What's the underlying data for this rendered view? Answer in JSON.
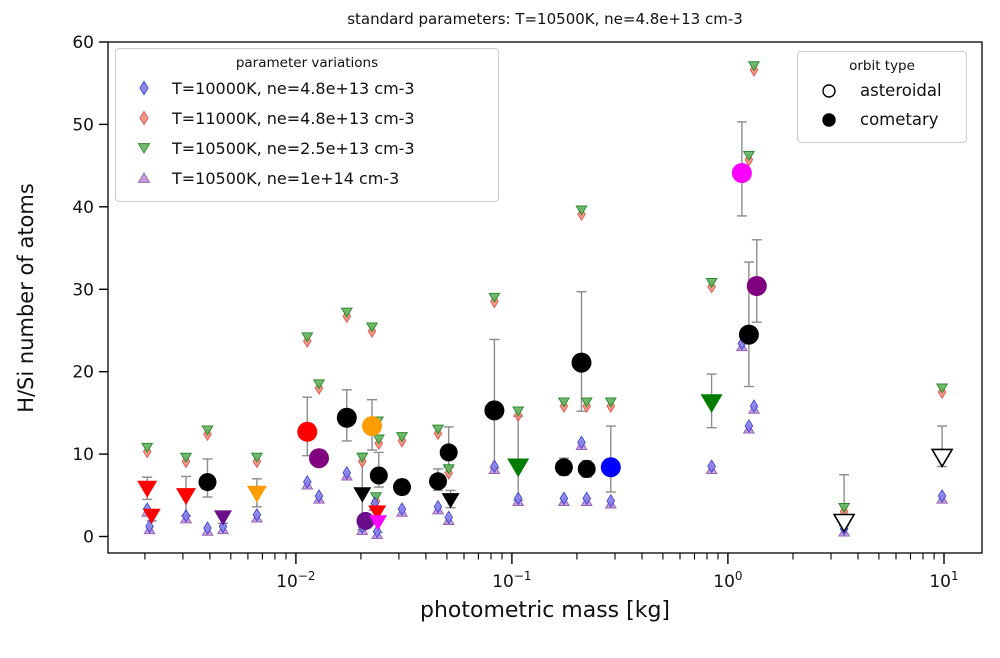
{
  "chart_data": {
    "type": "scatter",
    "title": "standard parameters: T=10500K, ne=4.8e+13 cm-3",
    "xlabel": "photometric mass [kg]",
    "ylabel": "H/Si number of atoms",
    "xscale": "log",
    "xlim": [
      0.00135,
      15
    ],
    "ylim": [
      -2,
      60
    ],
    "grid": false,
    "yticks": [
      0,
      10,
      20,
      30,
      40,
      50,
      60
    ],
    "xticks": [
      {
        "value": 0.01,
        "base": "10",
        "exp": "−2"
      },
      {
        "value": 0.1,
        "base": "10",
        "exp": "−1"
      },
      {
        "value": 1,
        "base": "10",
        "exp": "0"
      },
      {
        "value": 10,
        "base": "10",
        "exp": "1"
      }
    ],
    "legend_parameter_variations": {
      "title": "parameter variations",
      "entries": [
        {
          "label": "T=10000K, ne=4.8e+13 cm-3",
          "marker": "diamond",
          "fill": "#8080ee",
          "edge": "#4646d2"
        },
        {
          "label": "T=11000K, ne=4.8e+13 cm-3",
          "marker": "diamond",
          "fill": "#f4897b",
          "edge": "#e05a50"
        },
        {
          "label": "T=10500K, ne=2.5e+13 cm-3",
          "marker": "tri-down",
          "fill": "#63b663",
          "edge": "#2e8b2e"
        },
        {
          "label": "T=10500K, ne=1e+14 cm-3",
          "marker": "tri-up",
          "fill": "#bf94d4",
          "edge": "#9a63b8"
        }
      ]
    },
    "legend_orbit_type": {
      "title": "orbit type",
      "entries": [
        {
          "label": "asteroidal",
          "marker": "circle",
          "filled": false
        },
        {
          "label": "cometary",
          "marker": "circle",
          "filled": true
        }
      ]
    },
    "error_bar_color": "#8c8c8c",
    "main_points": [
      {
        "m": 0.00205,
        "v": 5.8,
        "lo": 1.3,
        "hi": 1.4,
        "color": "#ff0000",
        "shape": "tri-down",
        "size": 10,
        "filled": true,
        "orbit": "cometary"
      },
      {
        "m": 0.00215,
        "v": 2.5,
        "lo": 0.6,
        "hi": 0.6,
        "color": "#ff0000",
        "shape": "tri-down",
        "size": 9,
        "filled": true,
        "orbit": "cometary"
      },
      {
        "m": 0.0031,
        "v": 4.9,
        "lo": 2.4,
        "hi": 2.4,
        "color": "#ff0000",
        "shape": "tri-down",
        "size": 10,
        "filled": true,
        "orbit": "cometary"
      },
      {
        "m": 0.0039,
        "v": 6.6,
        "lo": 1.8,
        "hi": 2.8,
        "color": "#000000",
        "shape": "circle",
        "size": 9,
        "filled": true,
        "orbit": "cometary"
      },
      {
        "m": 0.0046,
        "v": 2.3,
        "lo": 0.7,
        "hi": 0.7,
        "color": "#6a0d8a",
        "shape": "tri-down",
        "size": 9,
        "filled": true,
        "orbit": "cometary"
      },
      {
        "m": 0.0066,
        "v": 5.2,
        "lo": 1.6,
        "hi": 1.8,
        "color": "#ff9d00",
        "shape": "tri-down",
        "size": 10,
        "filled": true,
        "orbit": "cometary"
      },
      {
        "m": 0.0113,
        "v": 12.7,
        "lo": 2.9,
        "hi": 4.2,
        "color": "#ff0000",
        "shape": "circle",
        "size": 10,
        "filled": true,
        "orbit": "cometary"
      },
      {
        "m": 0.0128,
        "v": 9.5,
        "lo": 0.9,
        "hi": 0.9,
        "color": "#800080",
        "shape": "circle",
        "size": 10,
        "filled": true,
        "orbit": "cometary"
      },
      {
        "m": 0.0172,
        "v": 14.4,
        "lo": 2.8,
        "hi": 3.4,
        "color": "#000000",
        "shape": "circle",
        "size": 10,
        "filled": true,
        "orbit": "cometary"
      },
      {
        "m": 0.0203,
        "v": 5.1,
        "lo": 4.3,
        "hi": 5.0,
        "color": "#000000",
        "shape": "tri-down",
        "size": 9,
        "filled": true,
        "orbit": "cometary"
      },
      {
        "m": 0.021,
        "v": 1.9,
        "lo": 0.5,
        "hi": 0.5,
        "color": "#6a0d8a",
        "shape": "circle",
        "size": 9,
        "filled": true,
        "orbit": "cometary"
      },
      {
        "m": 0.0225,
        "v": 13.4,
        "lo": 2.9,
        "hi": 3.2,
        "color": "#ff9d00",
        "shape": "circle",
        "size": 10,
        "filled": true,
        "orbit": "cometary"
      },
      {
        "m": 0.0242,
        "v": 7.4,
        "lo": 1.4,
        "hi": 2.8,
        "color": "#000000",
        "shape": "circle",
        "size": 9,
        "filled": true,
        "orbit": "cometary"
      },
      {
        "m": 0.0238,
        "v": 2.9,
        "lo": 0.7,
        "hi": 0.7,
        "color": "#ff0000",
        "shape": "tri-down",
        "size": 9,
        "filled": true,
        "orbit": "cometary"
      },
      {
        "m": 0.024,
        "v": 1.7,
        "lo": 1.2,
        "hi": 0.6,
        "color": "#ff00ff",
        "shape": "tri-down",
        "size": 9,
        "filled": true,
        "orbit": "cometary"
      },
      {
        "m": 0.031,
        "v": 6.0,
        "lo": 0.9,
        "hi": 0.9,
        "color": "#000000",
        "shape": "circle",
        "size": 9,
        "filled": true,
        "orbit": "cometary"
      },
      {
        "m": 0.0455,
        "v": 6.7,
        "lo": 1.1,
        "hi": 1.5,
        "color": "#000000",
        "shape": "circle",
        "size": 9,
        "filled": true,
        "orbit": "cometary"
      },
      {
        "m": 0.051,
        "v": 10.2,
        "lo": 1.8,
        "hi": 3.1,
        "color": "#000000",
        "shape": "circle",
        "size": 9,
        "filled": true,
        "orbit": "cometary"
      },
      {
        "m": 0.052,
        "v": 4.4,
        "lo": 0.9,
        "hi": 1.2,
        "color": "#000000",
        "shape": "tri-down",
        "size": 9,
        "filled": true,
        "orbit": "cometary"
      },
      {
        "m": 0.083,
        "v": 15.3,
        "lo": 7.0,
        "hi": 8.6,
        "color": "#000000",
        "shape": "circle",
        "size": 10,
        "filled": true,
        "orbit": "cometary"
      },
      {
        "m": 0.107,
        "v": 8.4,
        "lo": 4.0,
        "hi": 6.2,
        "color": "#007d00",
        "shape": "tri-down",
        "size": 11,
        "filled": true,
        "orbit": "cometary"
      },
      {
        "m": 0.174,
        "v": 8.4,
        "lo": 1.0,
        "hi": 1.1,
        "color": "#000000",
        "shape": "circle",
        "size": 9,
        "filled": true,
        "orbit": "cometary"
      },
      {
        "m": 0.21,
        "v": 21.1,
        "lo": 5.9,
        "hi": 8.6,
        "color": "#000000",
        "shape": "circle",
        "size": 10,
        "filled": true,
        "orbit": "cometary"
      },
      {
        "m": 0.222,
        "v": 8.2,
        "lo": 1.0,
        "hi": 1.0,
        "color": "#000000",
        "shape": "circle",
        "size": 9,
        "filled": true,
        "orbit": "cometary"
      },
      {
        "m": 0.287,
        "v": 8.4,
        "lo": 3.0,
        "hi": 5.0,
        "color": "#0000ff",
        "shape": "circle",
        "size": 10,
        "filled": true,
        "orbit": "cometary"
      },
      {
        "m": 0.84,
        "v": 16.2,
        "lo": 3.0,
        "hi": 3.5,
        "color": "#007d00",
        "shape": "tri-down",
        "size": 11,
        "filled": true,
        "orbit": "cometary"
      },
      {
        "m": 1.16,
        "v": 44.1,
        "lo": 5.2,
        "hi": 6.2,
        "color": "#ff00ff",
        "shape": "circle",
        "size": 10,
        "filled": true,
        "orbit": "cometary"
      },
      {
        "m": 1.25,
        "v": 24.5,
        "lo": 6.3,
        "hi": 8.8,
        "color": "#000000",
        "shape": "circle",
        "size": 10,
        "filled": true,
        "orbit": "cometary"
      },
      {
        "m": 1.36,
        "v": 30.4,
        "lo": 4.4,
        "hi": 5.6,
        "color": "#800080",
        "shape": "circle",
        "size": 10,
        "filled": true,
        "orbit": "cometary"
      },
      {
        "m": 3.45,
        "v": 1.7,
        "lo": 0.4,
        "hi": 5.8,
        "color": "#ffffff",
        "shape": "tri-down",
        "size": 10,
        "filled": false,
        "orbit": "asteroidal"
      },
      {
        "m": 9.8,
        "v": 9.6,
        "lo": 1.1,
        "hi": 3.8,
        "color": "#ffffff",
        "shape": "tri-down",
        "size": 10,
        "filled": false,
        "orbit": "asteroidal"
      }
    ],
    "variation_series_high": {
      "note": "overlapping pair: T=11000K salmon diamond + T=10500K ne=2.5e+13 green tri-down",
      "fill_diamond": "#f4897b",
      "edge_diamond": "#e05a50",
      "fill_tri": "#63b663",
      "edge_tri": "#2e8b2e",
      "points": [
        {
          "m": 0.00205,
          "v": 10.5
        },
        {
          "m": 0.0031,
          "v": 9.3
        },
        {
          "m": 0.0039,
          "v": 12.6
        },
        {
          "m": 0.0066,
          "v": 9.3
        },
        {
          "m": 0.0113,
          "v": 23.9
        },
        {
          "m": 0.0128,
          "v": 18.2
        },
        {
          "m": 0.0172,
          "v": 26.9
        },
        {
          "m": 0.0203,
          "v": 9.3
        },
        {
          "m": 0.0225,
          "v": 25.1
        },
        {
          "m": 0.024,
          "v": 13.7
        },
        {
          "m": 0.0242,
          "v": 11.5
        },
        {
          "m": 0.0235,
          "v": 4.5
        },
        {
          "m": 0.031,
          "v": 11.8
        },
        {
          "m": 0.0455,
          "v": 12.7
        },
        {
          "m": 0.051,
          "v": 7.9
        },
        {
          "m": 0.083,
          "v": 28.7
        },
        {
          "m": 0.107,
          "v": 14.9
        },
        {
          "m": 0.174,
          "v": 16.0
        },
        {
          "m": 0.21,
          "v": 39.3
        },
        {
          "m": 0.222,
          "v": 16.0
        },
        {
          "m": 0.287,
          "v": 16.0
        },
        {
          "m": 0.84,
          "v": 30.5
        },
        {
          "m": 1.25,
          "v": 45.9
        },
        {
          "m": 1.32,
          "v": 56.8
        },
        {
          "m": 3.45,
          "v": 3.2
        },
        {
          "m": 9.8,
          "v": 17.7
        }
      ]
    },
    "variation_series_low": {
      "note": "overlapping pair: T=10000K blue diamond + ne=1e+14 purple tri-up",
      "fill_diamond": "#8080ee",
      "edge_diamond": "#4646d2",
      "fill_tri": "#bf94d4",
      "edge_tri": "#9a63b8",
      "points": [
        {
          "m": 0.00205,
          "v": 3.2
        },
        {
          "m": 0.0021,
          "v": 1.1
        },
        {
          "m": 0.0031,
          "v": 2.4
        },
        {
          "m": 0.0039,
          "v": 0.9
        },
        {
          "m": 0.0046,
          "v": 1.1
        },
        {
          "m": 0.0066,
          "v": 2.5
        },
        {
          "m": 0.0113,
          "v": 6.5
        },
        {
          "m": 0.0128,
          "v": 4.8
        },
        {
          "m": 0.0172,
          "v": 7.6
        },
        {
          "m": 0.0203,
          "v": 1.0
        },
        {
          "m": 0.0232,
          "v": 3.9
        },
        {
          "m": 0.0238,
          "v": 0.5
        },
        {
          "m": 0.031,
          "v": 3.2
        },
        {
          "m": 0.0455,
          "v": 3.5
        },
        {
          "m": 0.051,
          "v": 2.2
        },
        {
          "m": 0.083,
          "v": 8.4
        },
        {
          "m": 0.107,
          "v": 4.5
        },
        {
          "m": 0.174,
          "v": 4.5
        },
        {
          "m": 0.21,
          "v": 11.3
        },
        {
          "m": 0.222,
          "v": 4.5
        },
        {
          "m": 0.287,
          "v": 4.2
        },
        {
          "m": 0.84,
          "v": 8.4
        },
        {
          "m": 1.16,
          "v": 23.3
        },
        {
          "m": 1.25,
          "v": 13.3
        },
        {
          "m": 1.32,
          "v": 15.7
        },
        {
          "m": 3.45,
          "v": 0.8
        },
        {
          "m": 9.8,
          "v": 4.8
        }
      ]
    }
  }
}
